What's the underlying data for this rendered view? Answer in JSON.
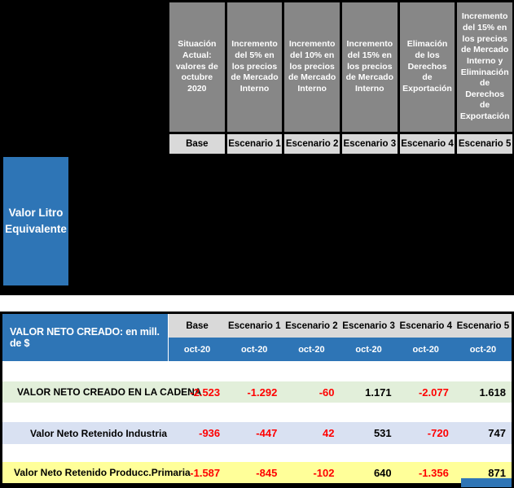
{
  "top_table": {
    "row_group_label": "Valor Litro Equivalente",
    "column_headers": [
      "Situación Actual: valores de octubre 2020",
      "Incremento del 5% en los precios de Mercado Interno",
      "Incremento del 10% en los precios de Mercado Interno",
      "Incremento del 15% en los precios de Mercado Interno",
      "Elimación de los Derechos de Exportación",
      "Incremento del 15% en los precios de Mercado Interno y Eliminación de Derechos de Exportación"
    ],
    "scenario_labels": [
      "Base",
      "Escenario 1",
      "Escenario 2",
      "Escenario 3",
      "Escenario 4",
      "Escenario 5"
    ]
  },
  "bottom_table": {
    "title": "VALOR NETO CREADO: en mill. de $",
    "scenario_labels": [
      "Base",
      "Escenario 1",
      "Escenario 2",
      "Escenario 3",
      "Escenario 4",
      "Escenario 5"
    ],
    "date_labels": [
      "oct-20",
      "oct-20",
      "oct-20",
      "oct-20",
      "oct-20",
      "oct-20"
    ],
    "rows": [
      {
        "label": "VALOR NETO CREADO EN LA CADENA",
        "values": [
          "-2.523",
          "-1.292",
          "-60",
          "1.171",
          "-2.077",
          "1.618"
        ],
        "value_colors": [
          "red",
          "red",
          "red",
          "black",
          "red",
          "black"
        ]
      },
      {
        "label": "Valor Neto Retenido Industria",
        "values": [
          "-936",
          "-447",
          "42",
          "531",
          "-720",
          "747"
        ],
        "value_colors": [
          "red",
          "red",
          "red",
          "black",
          "red",
          "black"
        ]
      },
      {
        "label": "Valor Neto Retenido Producc.Primaria",
        "values": [
          "-1.587",
          "-845",
          "-102",
          "640",
          "-1.356",
          "871"
        ],
        "value_colors": [
          "red",
          "red",
          "red",
          "black",
          "red",
          "black"
        ]
      }
    ]
  },
  "chart_data": {
    "type": "table",
    "title": "VALOR NETO CREADO: en mill. de $",
    "columns": [
      "Base",
      "Escenario 1",
      "Escenario 2",
      "Escenario 3",
      "Escenario 4",
      "Escenario 5"
    ],
    "period": "oct-20",
    "rows": [
      {
        "label": "VALOR NETO CREADO EN LA CADENA",
        "values": [
          -2523,
          -1292,
          -60,
          1171,
          -2077,
          1618
        ]
      },
      {
        "label": "Valor Neto Retenido Industria",
        "values": [
          -936,
          -447,
          42,
          531,
          -720,
          747
        ]
      },
      {
        "label": "Valor Neto Retenido Producc.Primaria",
        "values": [
          -1587,
          -845,
          -102,
          640,
          -1356,
          871
        ]
      }
    ]
  },
  "colors": {
    "accent_blue": "#2E75B6",
    "header_gray": "#878787",
    "scenario_row_gray": "#D9D9D9",
    "row_green": "#E2EFDA",
    "row_lavender": "#D9E1F2",
    "row_yellow": "#FFFF99",
    "negative_red": "#FF0000",
    "hidden_area_black": "#000000"
  }
}
